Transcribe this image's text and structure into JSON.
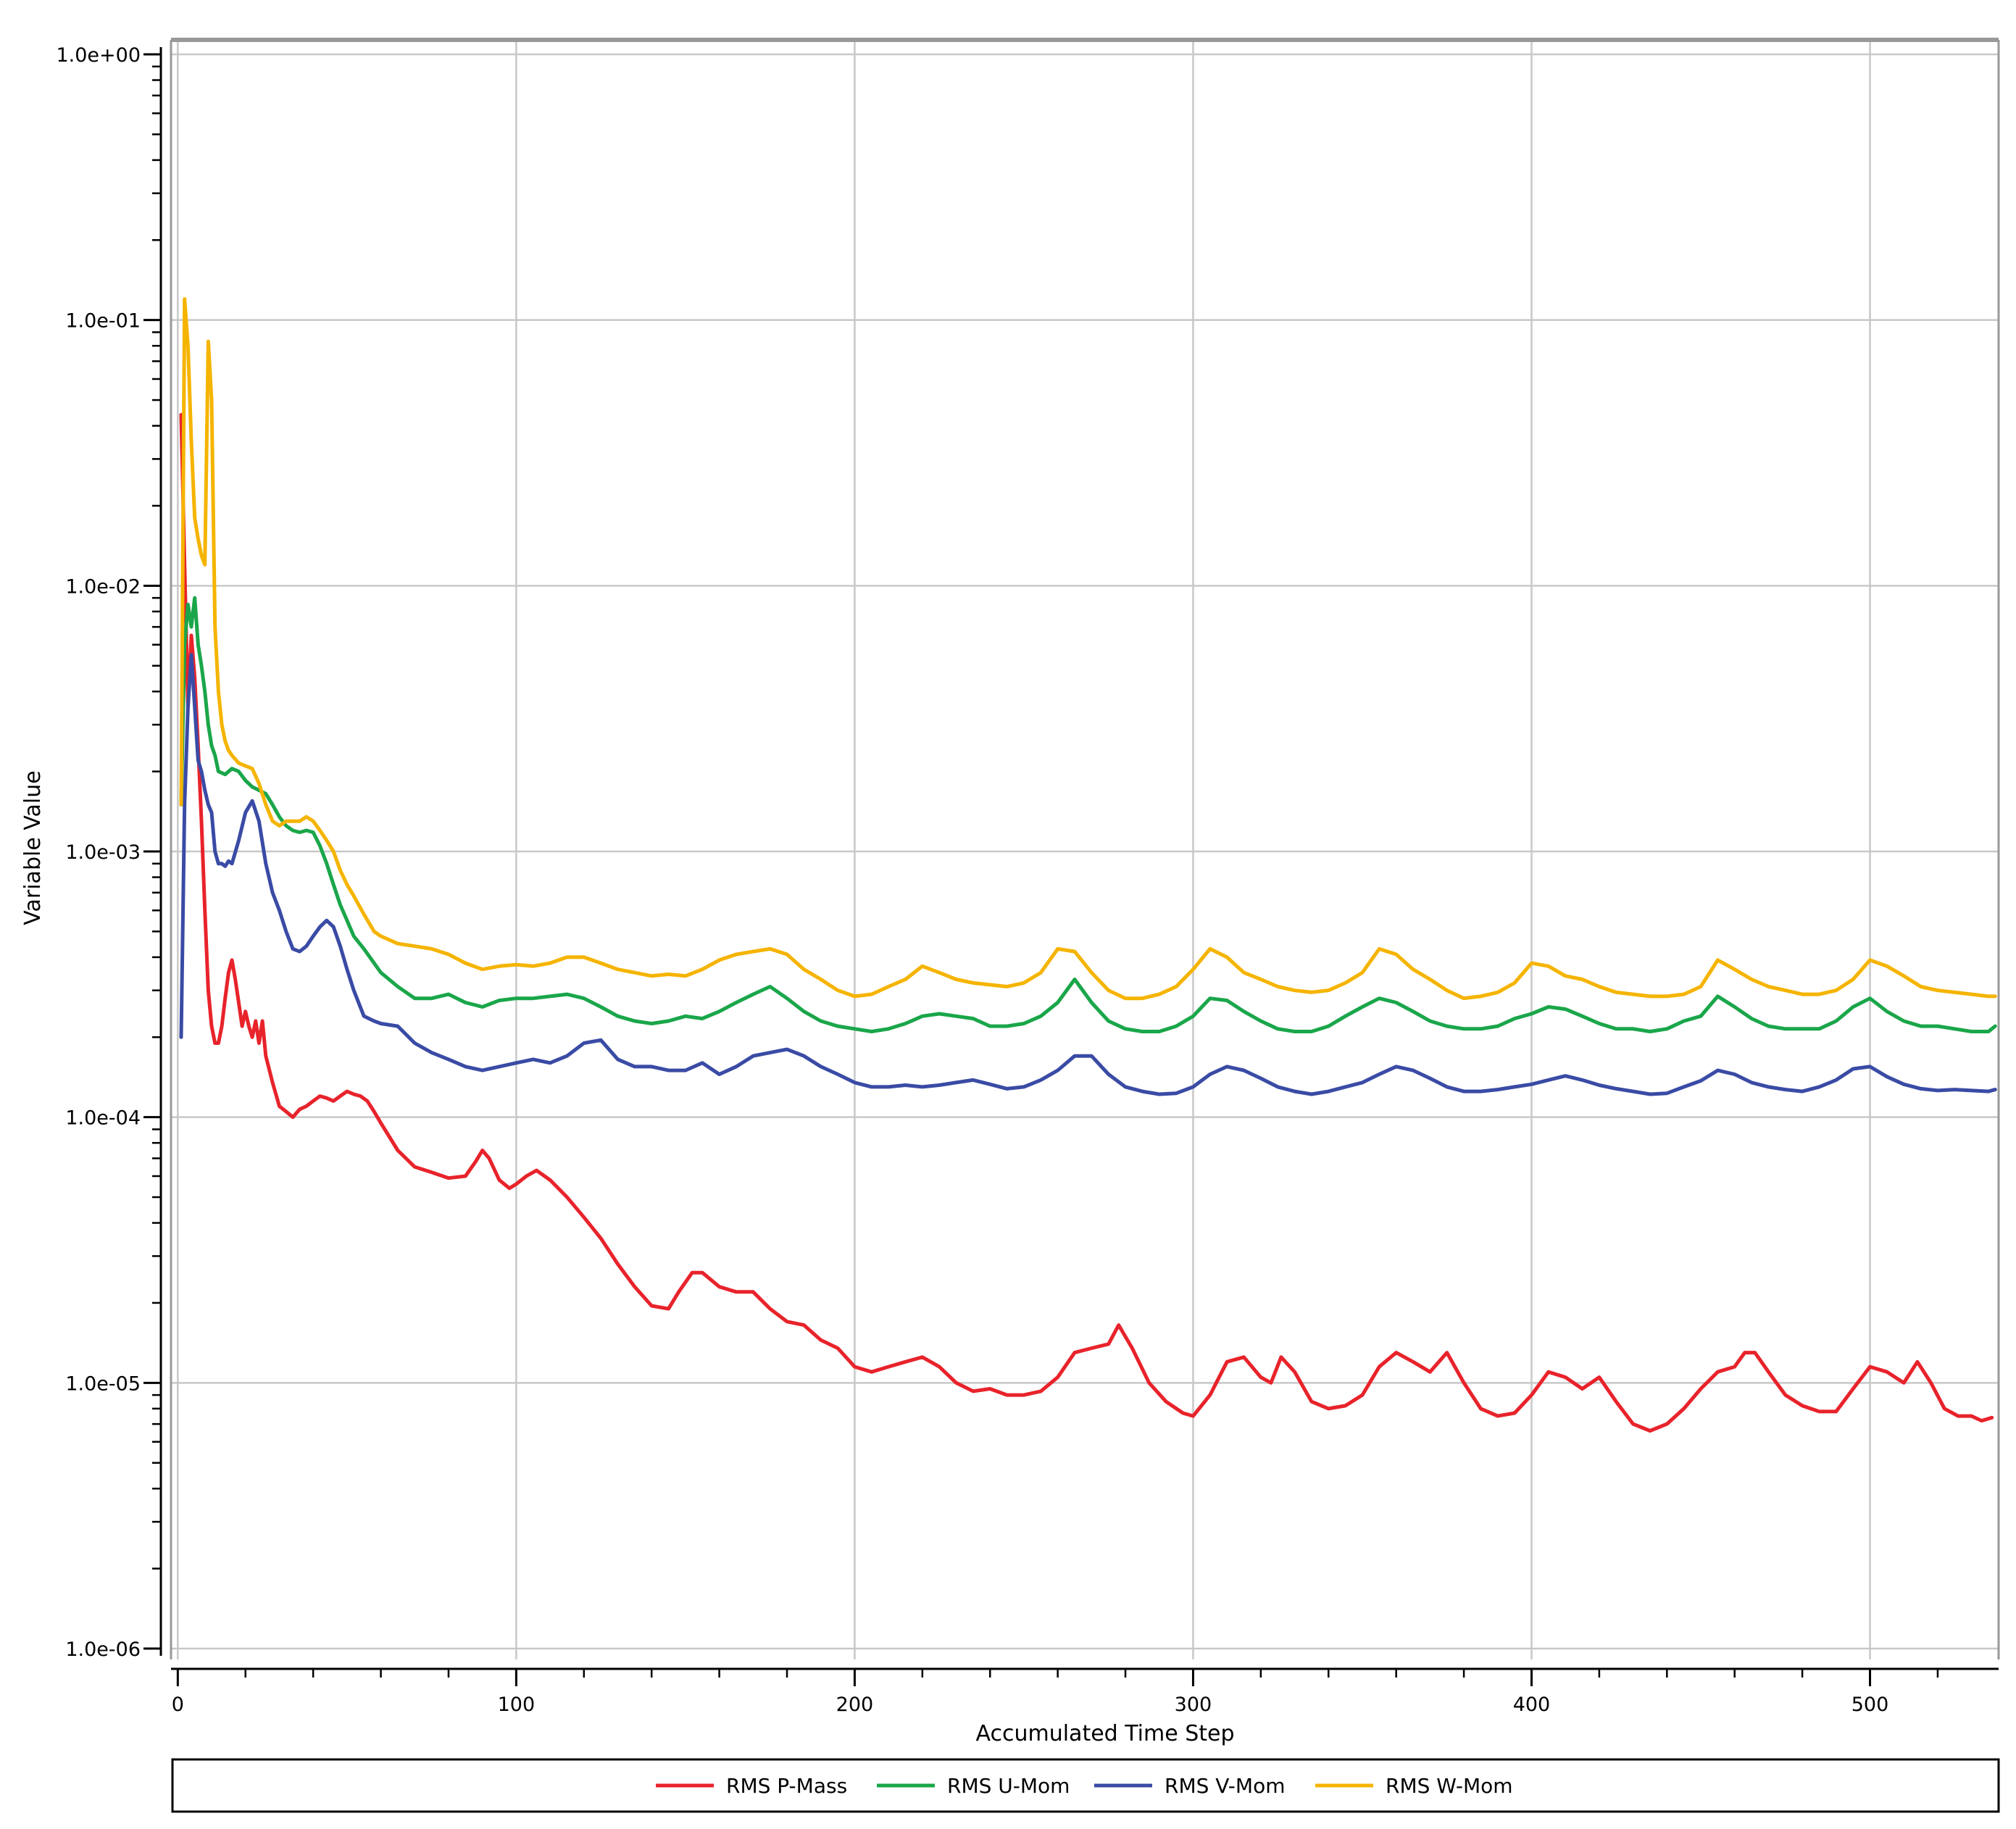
{
  "chart_data": {
    "type": "line",
    "title": "",
    "xlabel": "Accumulated Time Step",
    "ylabel": "Variable Value",
    "xlim": [
      -2,
      538
    ],
    "ylim": [
      1e-06,
      1
    ],
    "yscale": "log",
    "xticks": [
      0,
      100,
      200,
      300,
      400,
      500
    ],
    "xtick_labels": [
      "0",
      "100",
      "200",
      "300",
      "400",
      "500"
    ],
    "yticks": [
      1,
      0.1,
      0.01,
      0.001,
      0.0001,
      1e-05,
      1e-06
    ],
    "ytick_labels": [
      "1.0e+00",
      "1.0e-01",
      "1.0e-02",
      "1.0e-03",
      "1.0e-04",
      "1.0e-05",
      "1.0e-06"
    ],
    "grid": true,
    "legend_position": "bottom",
    "series": [
      {
        "name": "RMS P-Mass",
        "color": "#e8232b",
        "x": [
          1,
          2,
          3,
          4,
          5,
          6,
          7,
          8,
          9,
          10,
          11,
          12,
          13,
          14,
          15,
          16,
          17,
          18,
          19,
          20,
          21,
          22,
          23,
          24,
          25,
          26,
          28,
          30,
          32,
          34,
          36,
          38,
          40,
          42,
          44,
          46,
          48,
          50,
          52,
          54,
          56,
          58,
          60,
          65,
          70,
          75,
          80,
          85,
          88,
          90,
          92,
          95,
          98,
          100,
          103,
          106,
          110,
          115,
          120,
          125,
          130,
          135,
          140,
          145,
          148,
          152,
          155,
          160,
          165,
          170,
          175,
          180,
          185,
          190,
          195,
          200,
          205,
          210,
          215,
          220,
          225,
          230,
          235,
          240,
          245,
          250,
          255,
          260,
          265,
          270,
          275,
          278,
          282,
          287,
          292,
          297,
          300,
          305,
          310,
          315,
          320,
          323,
          326,
          330,
          335,
          340,
          345,
          350,
          355,
          360,
          365,
          370,
          375,
          380,
          385,
          390,
          395,
          400,
          405,
          410,
          415,
          420,
          425,
          430,
          435,
          440,
          445,
          450,
          455,
          460,
          463,
          466,
          470,
          475,
          480,
          485,
          490,
          495,
          500,
          505,
          510,
          514,
          518,
          522,
          526,
          530,
          533,
          536
        ],
        "y": [
          0.044,
          0.012,
          0.0035,
          0.0065,
          0.0045,
          0.0025,
          0.0013,
          0.0006,
          0.0003,
          0.00022,
          0.00019,
          0.00019,
          0.00022,
          0.00028,
          0.00035,
          0.00039,
          0.00033,
          0.00027,
          0.00022,
          0.00025,
          0.00022,
          0.0002,
          0.00023,
          0.00019,
          0.00023,
          0.00017,
          0.000135,
          0.00011,
          0.000105,
          0.0001,
          0.000107,
          0.00011,
          0.000115,
          0.00012,
          0.000118,
          0.000115,
          0.00012,
          0.000125,
          0.000122,
          0.00012,
          0.000115,
          0.000105,
          9.5e-05,
          7.5e-05,
          6.5e-05,
          6.2e-05,
          5.9e-05,
          6e-05,
          6.8e-05,
          7.5e-05,
          7e-05,
          5.8e-05,
          5.4e-05,
          5.6e-05,
          6e-05,
          6.3e-05,
          5.8e-05,
          5e-05,
          4.2e-05,
          3.5e-05,
          2.8e-05,
          2.3e-05,
          1.95e-05,
          1.9e-05,
          2.2e-05,
          2.6e-05,
          2.6e-05,
          2.3e-05,
          2.2e-05,
          2.2e-05,
          1.9e-05,
          1.7e-05,
          1.65e-05,
          1.45e-05,
          1.35e-05,
          1.15e-05,
          1.1e-05,
          1.15e-05,
          1.2e-05,
          1.25e-05,
          1.15e-05,
          1e-05,
          9.3e-06,
          9.5e-06,
          9e-06,
          9e-06,
          9.3e-06,
          1.05e-05,
          1.3e-05,
          1.35e-05,
          1.4e-05,
          1.65e-05,
          1.35e-05,
          1e-05,
          8.5e-06,
          7.7e-06,
          7.5e-06,
          9e-06,
          1.2e-05,
          1.25e-05,
          1.05e-05,
          1e-05,
          1.25e-05,
          1.1e-05,
          8.5e-06,
          8e-06,
          8.2e-06,
          9e-06,
          1.15e-05,
          1.3e-05,
          1.2e-05,
          1.1e-05,
          1.3e-05,
          1e-05,
          8e-06,
          7.5e-06,
          7.7e-06,
          9e-06,
          1.1e-05,
          1.05e-05,
          9.5e-06,
          1.05e-05,
          8.5e-06,
          7e-06,
          6.6e-06,
          7e-06,
          8e-06,
          9.5e-06,
          1.1e-05,
          1.15e-05,
          1.3e-05,
          1.3e-05,
          1.1e-05,
          9e-06,
          8.2e-06,
          7.8e-06,
          7.8e-06,
          9.5e-06,
          1.15e-05,
          1.1e-05,
          1e-05,
          1.2e-05,
          1e-05,
          8e-06,
          7.5e-06,
          7.5e-06,
          7.2e-06,
          7.4e-06
        ]
      },
      {
        "name": "RMS U-Mom",
        "color": "#1aa64a",
        "x": [
          1,
          2,
          3,
          4,
          5,
          6,
          7,
          8,
          9,
          10,
          11,
          12,
          14,
          16,
          18,
          20,
          22,
          24,
          26,
          28,
          30,
          32,
          34,
          36,
          38,
          40,
          42,
          44,
          46,
          48,
          50,
          52,
          55,
          58,
          60,
          65,
          70,
          75,
          80,
          85,
          90,
          95,
          100,
          105,
          110,
          115,
          120,
          125,
          130,
          135,
          140,
          145,
          150,
          155,
          160,
          165,
          170,
          175,
          180,
          185,
          190,
          195,
          200,
          205,
          210,
          215,
          220,
          225,
          230,
          235,
          240,
          245,
          250,
          255,
          260,
          265,
          270,
          275,
          280,
          285,
          290,
          295,
          300,
          305,
          310,
          315,
          320,
          325,
          330,
          335,
          340,
          345,
          350,
          355,
          360,
          365,
          370,
          375,
          380,
          385,
          390,
          395,
          400,
          405,
          410,
          415,
          420,
          425,
          430,
          435,
          440,
          445,
          450,
          455,
          460,
          465,
          470,
          475,
          480,
          485,
          490,
          495,
          500,
          505,
          510,
          515,
          520,
          525,
          530,
          535,
          537
        ],
        "y": [
          0.0015,
          0.006,
          0.0085,
          0.007,
          0.009,
          0.006,
          0.005,
          0.004,
          0.003,
          0.0025,
          0.0023,
          0.002,
          0.00195,
          0.00205,
          0.002,
          0.00185,
          0.00175,
          0.0017,
          0.00165,
          0.0015,
          0.00135,
          0.00125,
          0.0012,
          0.00118,
          0.0012,
          0.00118,
          0.00105,
          0.0009,
          0.00075,
          0.00063,
          0.00055,
          0.00048,
          0.00043,
          0.00038,
          0.00035,
          0.00031,
          0.00028,
          0.00028,
          0.00029,
          0.00027,
          0.00026,
          0.000275,
          0.00028,
          0.00028,
          0.000285,
          0.00029,
          0.00028,
          0.00026,
          0.00024,
          0.00023,
          0.000225,
          0.00023,
          0.00024,
          0.000235,
          0.00025,
          0.00027,
          0.00029,
          0.00031,
          0.00028,
          0.00025,
          0.00023,
          0.00022,
          0.000215,
          0.00021,
          0.000215,
          0.000225,
          0.00024,
          0.000245,
          0.00024,
          0.000235,
          0.00022,
          0.00022,
          0.000225,
          0.00024,
          0.00027,
          0.00033,
          0.00027,
          0.00023,
          0.000215,
          0.00021,
          0.00021,
          0.00022,
          0.00024,
          0.00028,
          0.000275,
          0.00025,
          0.00023,
          0.000215,
          0.00021,
          0.00021,
          0.00022,
          0.00024,
          0.00026,
          0.00028,
          0.00027,
          0.00025,
          0.00023,
          0.00022,
          0.000215,
          0.000215,
          0.00022,
          0.000235,
          0.000245,
          0.00026,
          0.000255,
          0.00024,
          0.000225,
          0.000215,
          0.000215,
          0.00021,
          0.000215,
          0.00023,
          0.00024,
          0.000285,
          0.00026,
          0.000235,
          0.00022,
          0.000215,
          0.000215,
          0.000215,
          0.00023,
          0.00026,
          0.00028,
          0.00025,
          0.00023,
          0.00022,
          0.00022,
          0.000215,
          0.00021,
          0.00021,
          0.00022
        ]
      },
      {
        "name": "RMS V-Mom",
        "color": "#3a4ba5",
        "x": [
          1,
          2,
          3,
          4,
          5,
          6,
          7,
          8,
          9,
          10,
          11,
          12,
          13,
          14,
          15,
          16,
          18,
          20,
          22,
          24,
          26,
          28,
          30,
          32,
          34,
          36,
          38,
          40,
          42,
          44,
          46,
          48,
          50,
          52,
          55,
          58,
          60,
          65,
          70,
          75,
          80,
          85,
          90,
          95,
          100,
          105,
          110,
          115,
          120,
          125,
          130,
          135,
          140,
          145,
          150,
          155,
          160,
          165,
          170,
          175,
          180,
          185,
          190,
          195,
          200,
          205,
          210,
          215,
          220,
          225,
          230,
          235,
          240,
          245,
          250,
          255,
          260,
          265,
          270,
          275,
          280,
          285,
          290,
          295,
          300,
          305,
          310,
          315,
          320,
          325,
          330,
          335,
          340,
          345,
          350,
          355,
          360,
          365,
          370,
          375,
          380,
          385,
          390,
          395,
          400,
          405,
          410,
          415,
          420,
          425,
          430,
          435,
          440,
          445,
          450,
          455,
          460,
          465,
          470,
          475,
          480,
          485,
          490,
          495,
          500,
          505,
          510,
          515,
          520,
          525,
          530,
          535,
          537
        ],
        "y": [
          0.0002,
          0.0015,
          0.0035,
          0.0055,
          0.0035,
          0.0022,
          0.002,
          0.0017,
          0.0015,
          0.0014,
          0.001,
          0.0009,
          0.0009,
          0.00088,
          0.00092,
          0.0009,
          0.0011,
          0.0014,
          0.00155,
          0.0013,
          0.0009,
          0.0007,
          0.0006,
          0.0005,
          0.00043,
          0.00042,
          0.00044,
          0.00048,
          0.00052,
          0.00055,
          0.00052,
          0.00044,
          0.00036,
          0.0003,
          0.00024,
          0.00023,
          0.000225,
          0.00022,
          0.00019,
          0.000175,
          0.000165,
          0.000155,
          0.00015,
          0.000155,
          0.00016,
          0.000165,
          0.00016,
          0.00017,
          0.00019,
          0.000195,
          0.000165,
          0.000155,
          0.000155,
          0.00015,
          0.00015,
          0.00016,
          0.000145,
          0.000155,
          0.00017,
          0.000175,
          0.00018,
          0.00017,
          0.000155,
          0.000145,
          0.000135,
          0.00013,
          0.00013,
          0.000132,
          0.00013,
          0.000132,
          0.000135,
          0.000138,
          0.000133,
          0.000128,
          0.00013,
          0.000138,
          0.00015,
          0.00017,
          0.00017,
          0.000145,
          0.00013,
          0.000125,
          0.000122,
          0.000123,
          0.00013,
          0.000145,
          0.000155,
          0.00015,
          0.00014,
          0.00013,
          0.000125,
          0.000122,
          0.000125,
          0.00013,
          0.000135,
          0.000145,
          0.000155,
          0.00015,
          0.00014,
          0.00013,
          0.000125,
          0.000125,
          0.000127,
          0.00013,
          0.000133,
          0.000138,
          0.000143,
          0.000138,
          0.000132,
          0.000128,
          0.000125,
          0.000122,
          0.000123,
          0.00013,
          0.000137,
          0.00015,
          0.000145,
          0.000135,
          0.00013,
          0.000127,
          0.000125,
          0.00013,
          0.000138,
          0.000152,
          0.000155,
          0.000142,
          0.000133,
          0.000128,
          0.000126,
          0.000127,
          0.000126,
          0.000125,
          0.000127
        ]
      },
      {
        "name": "RMS W-Mom",
        "color": "#f5b400",
        "x": [
          1,
          2,
          3,
          4,
          5,
          6,
          7,
          8,
          9,
          10,
          11,
          12,
          13,
          14,
          15,
          16,
          18,
          20,
          22,
          24,
          26,
          28,
          30,
          32,
          34,
          36,
          38,
          40,
          42,
          44,
          46,
          48,
          50,
          52,
          55,
          58,
          60,
          65,
          70,
          75,
          80,
          85,
          90,
          95,
          100,
          105,
          110,
          115,
          120,
          125,
          130,
          135,
          140,
          145,
          150,
          155,
          160,
          165,
          170,
          175,
          180,
          185,
          190,
          195,
          200,
          205,
          210,
          215,
          220,
          225,
          230,
          235,
          240,
          245,
          250,
          255,
          260,
          265,
          270,
          275,
          280,
          285,
          290,
          295,
          300,
          305,
          310,
          315,
          320,
          325,
          330,
          335,
          340,
          345,
          350,
          355,
          360,
          365,
          370,
          375,
          380,
          385,
          390,
          395,
          400,
          405,
          410,
          415,
          420,
          425,
          430,
          435,
          440,
          445,
          450,
          455,
          460,
          465,
          470,
          475,
          480,
          485,
          490,
          495,
          500,
          505,
          510,
          515,
          520,
          525,
          530,
          535,
          537
        ],
        "y": [
          0.0015,
          0.12,
          0.08,
          0.035,
          0.018,
          0.015,
          0.013,
          0.012,
          0.083,
          0.05,
          0.007,
          0.004,
          0.003,
          0.0026,
          0.0024,
          0.0023,
          0.00215,
          0.0021,
          0.00205,
          0.0018,
          0.0015,
          0.0013,
          0.00125,
          0.0013,
          0.0013,
          0.0013,
          0.00135,
          0.0013,
          0.0012,
          0.0011,
          0.001,
          0.00085,
          0.00075,
          0.00068,
          0.00058,
          0.0005,
          0.00048,
          0.00045,
          0.00044,
          0.00043,
          0.00041,
          0.00038,
          0.00036,
          0.00037,
          0.000375,
          0.00037,
          0.00038,
          0.0004,
          0.0004,
          0.00038,
          0.00036,
          0.00035,
          0.00034,
          0.000345,
          0.00034,
          0.00036,
          0.00039,
          0.00041,
          0.00042,
          0.00043,
          0.00041,
          0.00036,
          0.00033,
          0.0003,
          0.000285,
          0.00029,
          0.00031,
          0.00033,
          0.00037,
          0.00035,
          0.00033,
          0.00032,
          0.000315,
          0.00031,
          0.00032,
          0.00035,
          0.00043,
          0.00042,
          0.00035,
          0.0003,
          0.00028,
          0.00028,
          0.00029,
          0.00031,
          0.00036,
          0.00043,
          0.0004,
          0.00035,
          0.00033,
          0.00031,
          0.0003,
          0.000295,
          0.0003,
          0.00032,
          0.00035,
          0.00043,
          0.00041,
          0.00036,
          0.00033,
          0.0003,
          0.00028,
          0.000285,
          0.000295,
          0.00032,
          0.00038,
          0.00037,
          0.00034,
          0.00033,
          0.00031,
          0.000295,
          0.00029,
          0.000285,
          0.000285,
          0.00029,
          0.00031,
          0.00039,
          0.00036,
          0.00033,
          0.00031,
          0.0003,
          0.00029,
          0.00029,
          0.0003,
          0.00033,
          0.00039,
          0.00037,
          0.00034,
          0.00031,
          0.0003,
          0.000295,
          0.00029,
          0.000285,
          0.000285
        ]
      }
    ]
  }
}
